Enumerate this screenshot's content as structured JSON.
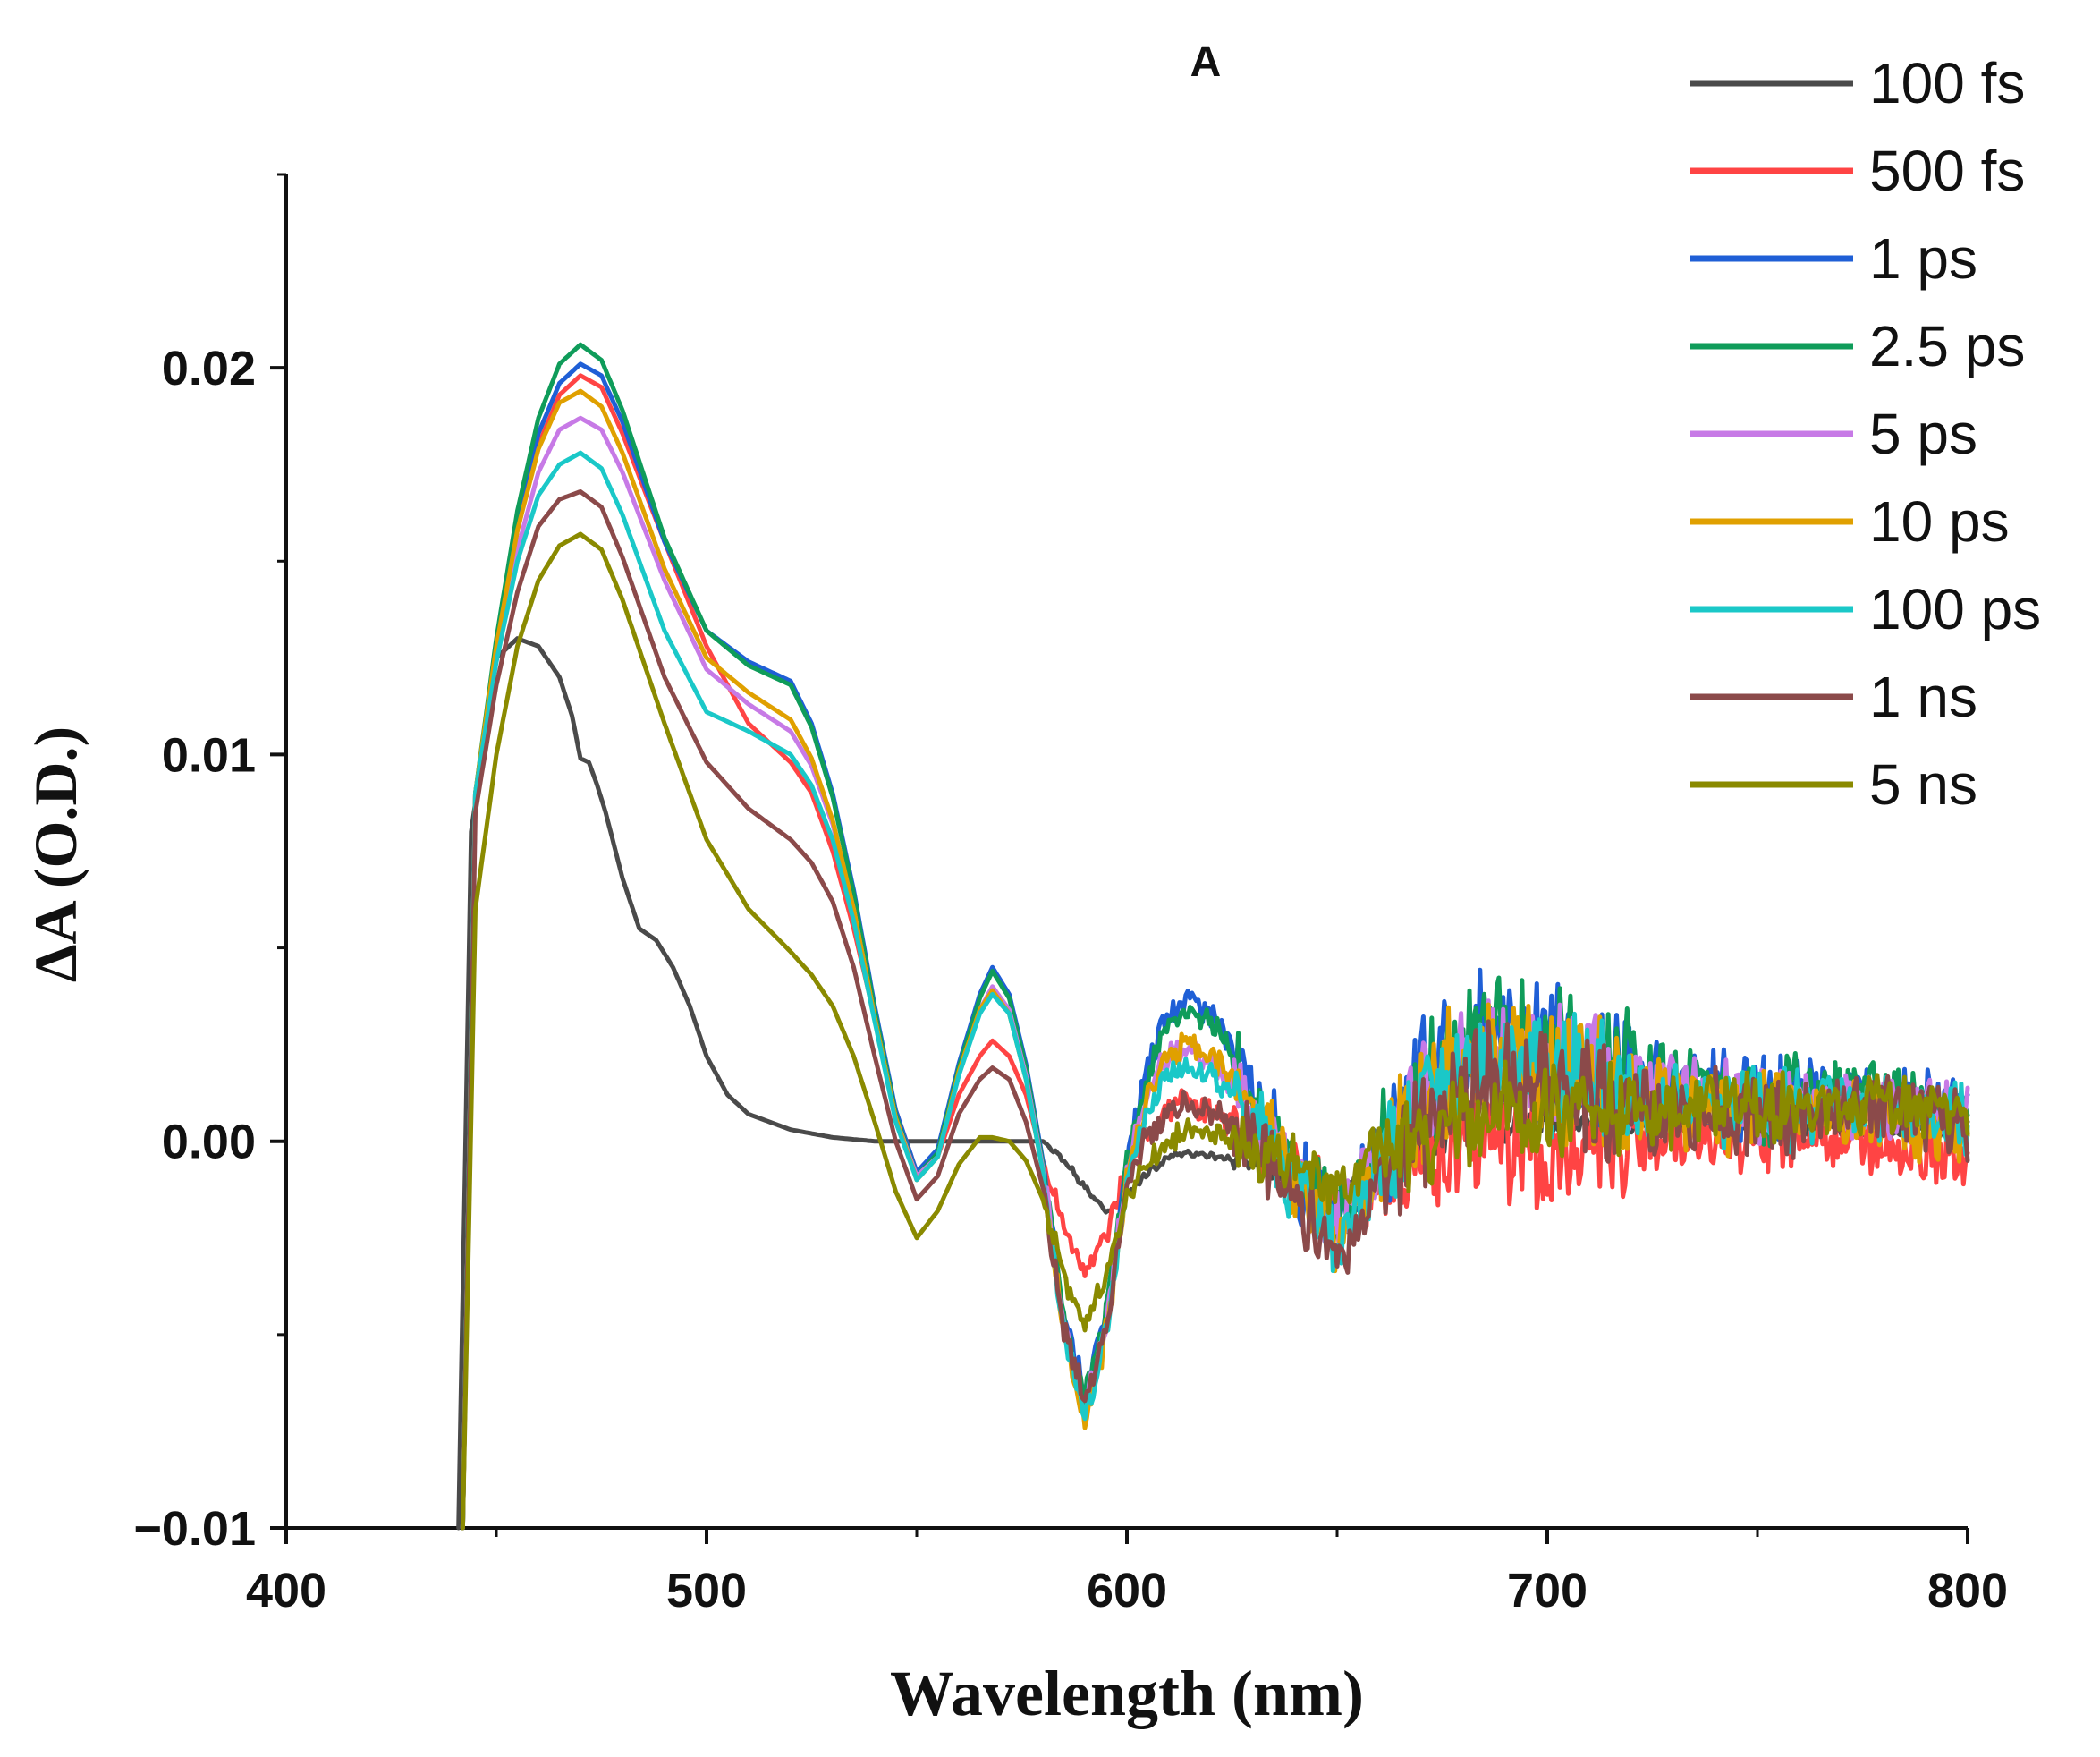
{
  "chart_data": {
    "type": "line",
    "title": "A",
    "xlabel": "Wavelength (nm)",
    "ylabel": "ΔA (O.D.)",
    "xlim": [
      400,
      800
    ],
    "ylim": [
      -0.01,
      0.025
    ],
    "xticks": [
      400,
      500,
      600,
      700,
      800
    ],
    "xtick_labels": [
      "400",
      "500",
      "600",
      "700",
      "800"
    ],
    "yticks": [
      -0.01,
      0.0,
      0.01,
      0.02
    ],
    "ytick_labels": [
      "−0.01",
      "0.00",
      "0.01",
      "0.02"
    ],
    "grid": false,
    "legend_position": "top-right",
    "series": [
      {
        "name": "100 fs",
        "color": "#4a4a4a",
        "noise": 0.25,
        "x": [
          441,
          444,
          450,
          455,
          460,
          465,
          468,
          470,
          472,
          474,
          476,
          480,
          484,
          488,
          492,
          496,
          500,
          505,
          510,
          520,
          530,
          540,
          550,
          560,
          570,
          575,
          580,
          585,
          590,
          595,
          600,
          605,
          610,
          615,
          620,
          630,
          640,
          650,
          660,
          680,
          700,
          720,
          750,
          780,
          800
        ],
        "y": [
          -0.01,
          0.008,
          0.0125,
          0.013,
          0.0128,
          0.012,
          0.011,
          0.0099,
          0.0098,
          0.0092,
          0.0085,
          0.0068,
          0.0055,
          0.0052,
          0.0045,
          0.0035,
          0.0022,
          0.0012,
          0.0007,
          0.0003,
          0.0001,
          0.0,
          0.0,
          0.0,
          0.0,
          0.0,
          0.0,
          -0.0005,
          -0.0012,
          -0.0018,
          -0.0014,
          -0.0008,
          -0.0004,
          -0.0003,
          -0.0004,
          -0.0005,
          -0.001,
          -0.0015,
          -0.0005,
          0.0003,
          0.0005,
          0.0005,
          0.0004,
          0.0003,
          0.0004
        ]
      },
      {
        "name": "500 fs",
        "color": "#ff4444",
        "noise": 0.9,
        "x": [
          442,
          445,
          450,
          455,
          460,
          465,
          470,
          475,
          480,
          490,
          500,
          510,
          520,
          525,
          530,
          535,
          540,
          545,
          550,
          555,
          560,
          565,
          568,
          572,
          576,
          580,
          585,
          590,
          595,
          600,
          605,
          610,
          615,
          620,
          625,
          630,
          640,
          650,
          660,
          670,
          680,
          690,
          700,
          720,
          750,
          780,
          800
        ],
        "y": [
          -0.01,
          0.009,
          0.0125,
          0.0158,
          0.018,
          0.0193,
          0.0198,
          0.0195,
          0.0183,
          0.0155,
          0.0128,
          0.0108,
          0.0098,
          0.009,
          0.0075,
          0.0055,
          0.0032,
          0.0008,
          -0.0008,
          -0.0004,
          0.0012,
          0.0022,
          0.0026,
          0.0022,
          0.0012,
          -0.0005,
          -0.0022,
          -0.0035,
          -0.0025,
          -0.0008,
          0.0003,
          0.0008,
          0.001,
          0.0008,
          0.0004,
          0.0,
          -0.0008,
          -0.0018,
          -0.0012,
          -0.0005,
          0.0,
          0.0,
          -0.0002,
          0.0,
          0.0002,
          0.0,
          -0.0005
        ]
      },
      {
        "name": "1 ps",
        "color": "#1f5fd6",
        "noise": 1.0,
        "x": [
          442,
          445,
          450,
          455,
          460,
          465,
          470,
          475,
          480,
          490,
          500,
          510,
          520,
          525,
          530,
          535,
          540,
          545,
          550,
          555,
          560,
          565,
          568,
          572,
          576,
          580,
          585,
          590,
          595,
          600,
          605,
          610,
          615,
          620,
          625,
          630,
          640,
          650,
          660,
          670,
          680,
          690,
          700,
          720,
          750,
          780,
          800
        ],
        "y": [
          -0.01,
          0.009,
          0.0128,
          0.016,
          0.0183,
          0.0196,
          0.0201,
          0.0198,
          0.0186,
          0.0155,
          0.0132,
          0.0124,
          0.0119,
          0.0108,
          0.009,
          0.0065,
          0.0035,
          0.0008,
          -0.0008,
          -0.0002,
          0.002,
          0.0038,
          0.0045,
          0.0038,
          0.002,
          -0.0005,
          -0.0045,
          -0.0065,
          -0.0045,
          -0.0005,
          0.002,
          0.0034,
          0.0037,
          0.0033,
          0.0025,
          0.0012,
          -0.0008,
          -0.002,
          -0.0005,
          0.0015,
          0.0028,
          0.003,
          0.0025,
          0.0018,
          0.0012,
          0.0012,
          0.0008
        ]
      },
      {
        "name": "2.5 ps",
        "color": "#0f9c5a",
        "noise": 1.0,
        "x": [
          442,
          445,
          450,
          455,
          460,
          465,
          470,
          475,
          480,
          490,
          500,
          510,
          520,
          525,
          530,
          535,
          540,
          545,
          550,
          555,
          560,
          565,
          568,
          572,
          576,
          580,
          585,
          590,
          595,
          600,
          605,
          610,
          615,
          620,
          625,
          630,
          640,
          650,
          660,
          670,
          680,
          690,
          700,
          720,
          750,
          780,
          800
        ],
        "y": [
          -0.01,
          0.009,
          0.013,
          0.0163,
          0.0187,
          0.0201,
          0.0206,
          0.0202,
          0.0189,
          0.0156,
          0.0132,
          0.0123,
          0.0118,
          0.0107,
          0.0089,
          0.0064,
          0.0034,
          0.0007,
          -0.0009,
          -0.0003,
          0.0019,
          0.0037,
          0.0044,
          0.0037,
          0.0019,
          -0.0006,
          -0.0046,
          -0.0066,
          -0.0046,
          -0.0006,
          0.0018,
          0.0031,
          0.0034,
          0.0031,
          0.0023,
          0.0011,
          -0.0008,
          -0.002,
          -0.0005,
          0.0014,
          0.0026,
          0.0028,
          0.0024,
          0.0017,
          0.0012,
          0.0013,
          0.0007
        ]
      },
      {
        "name": "5 ps",
        "color": "#c77ae6",
        "noise": 0.9,
        "x": [
          442,
          445,
          450,
          455,
          460,
          465,
          470,
          475,
          480,
          490,
          500,
          510,
          520,
          525,
          530,
          535,
          540,
          545,
          550,
          555,
          560,
          565,
          568,
          572,
          576,
          580,
          585,
          590,
          595,
          600,
          605,
          610,
          615,
          620,
          625,
          630,
          640,
          650,
          660,
          670,
          680,
          690,
          700,
          720,
          750,
          780,
          800
        ],
        "y": [
          -0.01,
          0.009,
          0.0126,
          0.0153,
          0.0173,
          0.0184,
          0.0187,
          0.0184,
          0.0173,
          0.0145,
          0.0122,
          0.0113,
          0.0106,
          0.0097,
          0.0082,
          0.006,
          0.0032,
          0.0006,
          -0.0009,
          -0.0004,
          0.0017,
          0.0034,
          0.004,
          0.0034,
          0.0017,
          -0.0007,
          -0.0048,
          -0.007,
          -0.0048,
          -0.0008,
          0.0014,
          0.0022,
          0.0024,
          0.0021,
          0.0015,
          0.0007,
          -0.001,
          -0.0022,
          -0.0006,
          0.0012,
          0.0022,
          0.0024,
          0.002,
          0.0014,
          0.001,
          0.001,
          0.0006
        ]
      },
      {
        "name": "10 ps",
        "color": "#e0a000",
        "noise": 1.0,
        "x": [
          442,
          445,
          450,
          455,
          460,
          465,
          470,
          475,
          480,
          490,
          500,
          510,
          520,
          525,
          530,
          535,
          540,
          545,
          550,
          555,
          560,
          565,
          568,
          572,
          576,
          580,
          585,
          590,
          595,
          600,
          605,
          610,
          615,
          620,
          625,
          630,
          640,
          650,
          660,
          670,
          680,
          690,
          700,
          720,
          750,
          780,
          800
        ],
        "y": [
          -0.01,
          0.009,
          0.0128,
          0.0158,
          0.0179,
          0.0191,
          0.0194,
          0.019,
          0.0178,
          0.0148,
          0.0125,
          0.0116,
          0.0109,
          0.0099,
          0.0083,
          0.006,
          0.0032,
          0.0006,
          -0.001,
          -0.0004,
          0.0018,
          0.0034,
          0.0039,
          0.0033,
          0.0016,
          -0.0008,
          -0.005,
          -0.0072,
          -0.005,
          -0.001,
          0.0012,
          0.0023,
          0.0025,
          0.0022,
          0.0016,
          0.0007,
          -0.001,
          -0.0024,
          -0.0008,
          0.001,
          0.002,
          0.0022,
          0.0018,
          0.0012,
          0.0008,
          0.0006,
          0.0002
        ]
      },
      {
        "name": "100 ps",
        "color": "#1ac8c8",
        "noise": 1.0,
        "x": [
          442,
          445,
          450,
          455,
          460,
          465,
          470,
          475,
          480,
          490,
          500,
          510,
          520,
          525,
          530,
          535,
          540,
          545,
          550,
          555,
          560,
          565,
          568,
          572,
          576,
          580,
          585,
          590,
          595,
          600,
          605,
          610,
          615,
          620,
          625,
          630,
          640,
          650,
          660,
          670,
          680,
          690,
          700,
          720,
          750,
          780,
          800
        ],
        "y": [
          -0.01,
          0.009,
          0.0124,
          0.015,
          0.0167,
          0.0175,
          0.0178,
          0.0174,
          0.0162,
          0.0132,
          0.0111,
          0.0106,
          0.01,
          0.0092,
          0.0078,
          0.0057,
          0.0031,
          0.0005,
          -0.001,
          -0.0004,
          0.0017,
          0.0033,
          0.0038,
          0.0033,
          0.0016,
          -0.0008,
          -0.005,
          -0.0072,
          -0.005,
          -0.001,
          0.0008,
          0.0016,
          0.0019,
          0.0017,
          0.0012,
          0.0005,
          -0.0012,
          -0.0025,
          -0.0008,
          0.001,
          0.002,
          0.0022,
          0.0018,
          0.0013,
          0.0009,
          0.0009,
          0.0005
        ]
      },
      {
        "name": "1 ns",
        "color": "#8b4a4a",
        "noise": 1.0,
        "x": [
          442,
          445,
          450,
          455,
          460,
          465,
          470,
          475,
          480,
          490,
          500,
          510,
          520,
          525,
          530,
          535,
          540,
          545,
          550,
          555,
          560,
          565,
          568,
          572,
          576,
          580,
          585,
          590,
          595,
          600,
          605,
          610,
          615,
          620,
          625,
          630,
          640,
          650,
          660,
          670,
          680,
          690,
          700,
          720,
          750,
          780,
          800
        ],
        "y": [
          -0.01,
          0.0085,
          0.0118,
          0.0142,
          0.0159,
          0.0166,
          0.0168,
          0.0164,
          0.0151,
          0.012,
          0.0098,
          0.0086,
          0.0078,
          0.0072,
          0.0062,
          0.0045,
          0.0022,
          0.0,
          -0.0015,
          -0.0009,
          0.0007,
          0.0016,
          0.0019,
          0.0016,
          0.0005,
          -0.0012,
          -0.0048,
          -0.0068,
          -0.0048,
          -0.0012,
          0.0002,
          0.0008,
          0.001,
          0.0008,
          0.0004,
          0.0,
          -0.0015,
          -0.0035,
          -0.0012,
          0.0005,
          0.0012,
          0.0018,
          0.0012,
          0.0008,
          0.0006,
          0.0008,
          0.0004
        ]
      },
      {
        "name": "5 ns",
        "color": "#8a8a00",
        "noise": 0.8,
        "x": [
          442,
          445,
          450,
          455,
          460,
          465,
          470,
          475,
          480,
          490,
          500,
          510,
          520,
          525,
          530,
          535,
          540,
          545,
          550,
          555,
          560,
          565,
          568,
          572,
          576,
          580,
          585,
          590,
          595,
          600,
          605,
          610,
          615,
          620,
          625,
          630,
          640,
          650,
          660,
          670,
          680,
          690,
          700,
          720,
          750,
          780,
          800
        ],
        "y": [
          -0.01,
          0.006,
          0.01,
          0.0128,
          0.0145,
          0.0154,
          0.0157,
          0.0153,
          0.014,
          0.0108,
          0.0078,
          0.006,
          0.0049,
          0.0043,
          0.0035,
          0.0022,
          0.0005,
          -0.0013,
          -0.0025,
          -0.0018,
          -0.0006,
          0.0001,
          0.0001,
          0.0,
          -0.0005,
          -0.0015,
          -0.0035,
          -0.0048,
          -0.0035,
          -0.0015,
          -0.0005,
          0.0,
          0.0003,
          0.0002,
          0.0,
          -0.0002,
          -0.0006,
          -0.0012,
          -0.0004,
          0.0002,
          0.0006,
          0.0008,
          0.0008,
          0.0008,
          0.0008,
          0.001,
          0.0008
        ]
      }
    ]
  }
}
